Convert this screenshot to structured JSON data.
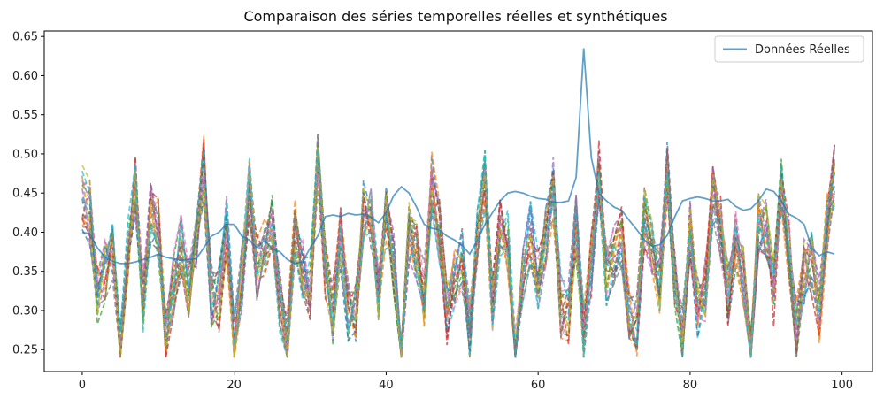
{
  "chart_data": {
    "type": "line",
    "title": "Comparaison des séries temporelles réelles et synthétiques",
    "xlabel": "",
    "ylabel": "",
    "xlim": [
      -5,
      104
    ],
    "ylim": [
      0.222,
      0.657
    ],
    "xticks": [
      0,
      20,
      40,
      60,
      80,
      100
    ],
    "xtick_labels": [
      "0",
      "20",
      "40",
      "60",
      "80",
      "100"
    ],
    "yticks": [
      0.25,
      0.3,
      0.35,
      0.4,
      0.45,
      0.5,
      0.55,
      0.6,
      0.65
    ],
    "ytick_labels": [
      "0.25",
      "0.30",
      "0.35",
      "0.40",
      "0.45",
      "0.50",
      "0.55",
      "0.60",
      "0.65"
    ],
    "grid": false,
    "legend": {
      "position": "top-right",
      "entries": [
        "Données Réelles"
      ]
    },
    "real_series": {
      "name": "Données Réelles",
      "color": "#1f77b4",
      "x": [
        0,
        1,
        2,
        3,
        4,
        5,
        6,
        7,
        8,
        9,
        10,
        11,
        12,
        13,
        14,
        15,
        16,
        17,
        18,
        19,
        20,
        21,
        22,
        23,
        24,
        25,
        26,
        27,
        28,
        29,
        30,
        31,
        32,
        33,
        34,
        35,
        36,
        37,
        38,
        39,
        40,
        41,
        42,
        43,
        44,
        45,
        46,
        47,
        48,
        49,
        50,
        51,
        52,
        53,
        54,
        55,
        56,
        57,
        58,
        59,
        60,
        61,
        62,
        63,
        64,
        65,
        66,
        67,
        68,
        69,
        70,
        71,
        72,
        73,
        74,
        75,
        76,
        77,
        78,
        79,
        80,
        81,
        82,
        83,
        84,
        85,
        86,
        87,
        88,
        89,
        90,
        91,
        92,
        93,
        94,
        95,
        96,
        97,
        98,
        99
      ],
      "y": [
        0.4,
        0.398,
        0.38,
        0.368,
        0.363,
        0.36,
        0.36,
        0.362,
        0.365,
        0.368,
        0.372,
        0.368,
        0.366,
        0.364,
        0.365,
        0.366,
        0.38,
        0.395,
        0.4,
        0.41,
        0.41,
        0.395,
        0.39,
        0.38,
        0.39,
        0.378,
        0.375,
        0.365,
        0.36,
        0.362,
        0.38,
        0.395,
        0.42,
        0.422,
        0.42,
        0.424,
        0.422,
        0.423,
        0.419,
        0.412,
        0.425,
        0.447,
        0.458,
        0.45,
        0.432,
        0.41,
        0.405,
        0.403,
        0.395,
        0.39,
        0.383,
        0.372,
        0.39,
        0.41,
        0.425,
        0.44,
        0.45,
        0.452,
        0.45,
        0.446,
        0.443,
        0.442,
        0.438,
        0.438,
        0.44,
        0.47,
        0.635,
        0.495,
        0.45,
        0.44,
        0.432,
        0.428,
        0.415,
        0.403,
        0.39,
        0.382,
        0.384,
        0.396,
        0.42,
        0.44,
        0.443,
        0.445,
        0.443,
        0.44,
        0.44,
        0.442,
        0.433,
        0.428,
        0.43,
        0.44,
        0.455,
        0.452,
        0.44,
        0.423,
        0.418,
        0.41,
        0.38,
        0.37,
        0.375,
        0.372
      ]
    },
    "synthetic_series_count": 20,
    "synthetic_colors": [
      "#1f77b4",
      "#ff7f0e",
      "#2ca02c",
      "#d62728",
      "#9467bd",
      "#8c564b",
      "#e377c2",
      "#7f7f7f",
      "#bcbd22",
      "#17becf"
    ]
  }
}
